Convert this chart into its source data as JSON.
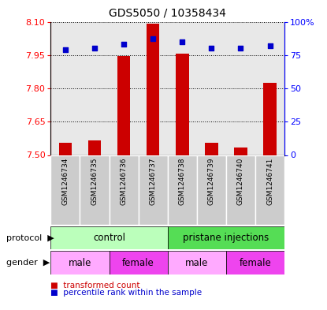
{
  "title": "GDS5050 / 10358434",
  "samples": [
    "GSM1246734",
    "GSM1246735",
    "GSM1246736",
    "GSM1246737",
    "GSM1246738",
    "GSM1246739",
    "GSM1246740",
    "GSM1246741"
  ],
  "transformed_count": [
    7.555,
    7.565,
    7.945,
    8.09,
    7.955,
    7.555,
    7.535,
    7.825
  ],
  "percentile_rank": [
    79,
    80,
    83,
    87,
    85,
    80,
    80,
    82
  ],
  "ylim_left": [
    7.5,
    8.1
  ],
  "ylim_right": [
    0,
    100
  ],
  "yticks_left": [
    7.5,
    7.65,
    7.8,
    7.95,
    8.1
  ],
  "yticks_right": [
    0,
    25,
    50,
    75,
    100
  ],
  "ytick_labels_right": [
    "0",
    "25",
    "50",
    "75",
    "100%"
  ],
  "bar_color": "#cc0000",
  "dot_color": "#0000cc",
  "bar_bottom": 7.5,
  "col_bg_color": "#cccccc",
  "protocol_groups": [
    {
      "label": "control",
      "start": 0,
      "end": 4,
      "facecolor": "#bbffbb"
    },
    {
      "label": "pristane injections",
      "start": 4,
      "end": 8,
      "facecolor": "#55dd55"
    }
  ],
  "gender_groups": [
    {
      "label": "male",
      "start": 0,
      "end": 2,
      "facecolor": "#ffaaff"
    },
    {
      "label": "female",
      "start": 2,
      "end": 4,
      "facecolor": "#ee44ee"
    },
    {
      "label": "male",
      "start": 4,
      "end": 6,
      "facecolor": "#ffaaff"
    },
    {
      "label": "female",
      "start": 6,
      "end": 8,
      "facecolor": "#ee44ee"
    }
  ],
  "legend_bar_label": "transformed count",
  "legend_dot_label": "percentile rank within the sample",
  "figsize": [
    4.15,
    3.93
  ],
  "dpi": 100
}
